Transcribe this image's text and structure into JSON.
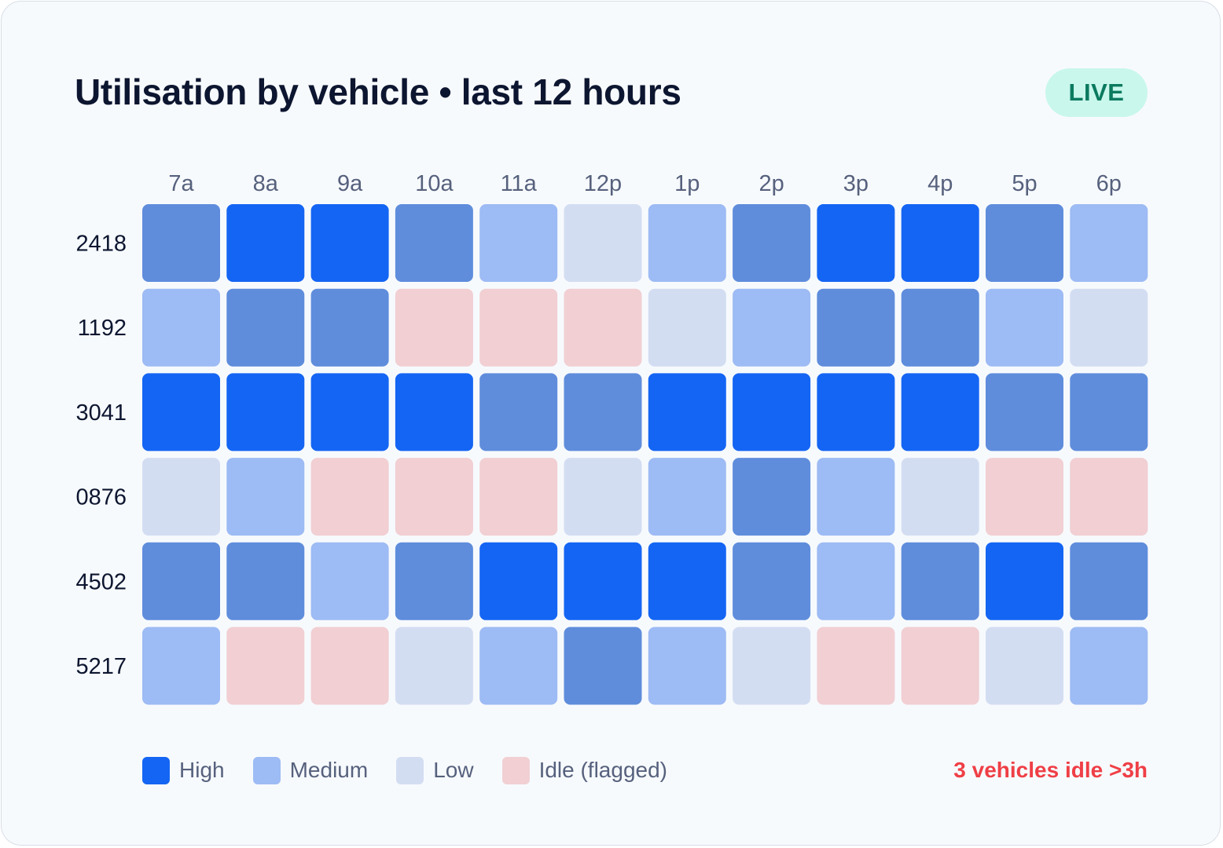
{
  "header": {
    "title": "Utilisation by vehicle • last 12 hours",
    "live_badge": "LIVE"
  },
  "colors": {
    "high": "#1465f3",
    "medium": "#9dbbf4",
    "low": "#d3ddf2",
    "idle": "#f1cfd3",
    "medium_high": "#5f8ddc"
  },
  "chart_data": {
    "type": "heatmap",
    "x_categories": [
      "7a",
      "8a",
      "9a",
      "10a",
      "11a",
      "12p",
      "1p",
      "2p",
      "3p",
      "4p",
      "5p",
      "6p"
    ],
    "y_categories": [
      "2418",
      "1192",
      "3041",
      "0876",
      "4502",
      "5217"
    ],
    "levels": [
      "high",
      "medium_high",
      "medium",
      "low",
      "idle"
    ],
    "values": [
      [
        "medium_high",
        "high",
        "high",
        "medium_high",
        "medium",
        "low",
        "medium",
        "medium_high",
        "high",
        "high",
        "medium_high",
        "medium"
      ],
      [
        "medium",
        "medium_high",
        "medium_high",
        "idle",
        "idle",
        "idle",
        "low",
        "medium",
        "medium_high",
        "medium_high",
        "medium",
        "low"
      ],
      [
        "high",
        "high",
        "high",
        "high",
        "medium_high",
        "medium_high",
        "high",
        "high",
        "high",
        "high",
        "medium_high",
        "medium_high"
      ],
      [
        "low",
        "medium",
        "idle",
        "idle",
        "idle",
        "low",
        "medium",
        "medium_high",
        "medium",
        "low",
        "idle",
        "idle"
      ],
      [
        "medium_high",
        "medium_high",
        "medium",
        "medium_high",
        "high",
        "high",
        "high",
        "medium_high",
        "medium",
        "medium_high",
        "high",
        "medium_high"
      ],
      [
        "medium",
        "idle",
        "idle",
        "low",
        "medium",
        "medium_high",
        "medium",
        "low",
        "idle",
        "idle",
        "low",
        "medium"
      ]
    ],
    "legend": [
      {
        "label": "High",
        "level": "high"
      },
      {
        "label": "Medium",
        "level": "medium"
      },
      {
        "label": "Low",
        "level": "low"
      },
      {
        "label": "Idle (flagged)",
        "level": "idle"
      }
    ],
    "legend_position": "bottom-left"
  },
  "alert": {
    "text": "3 vehicles idle >3h"
  }
}
